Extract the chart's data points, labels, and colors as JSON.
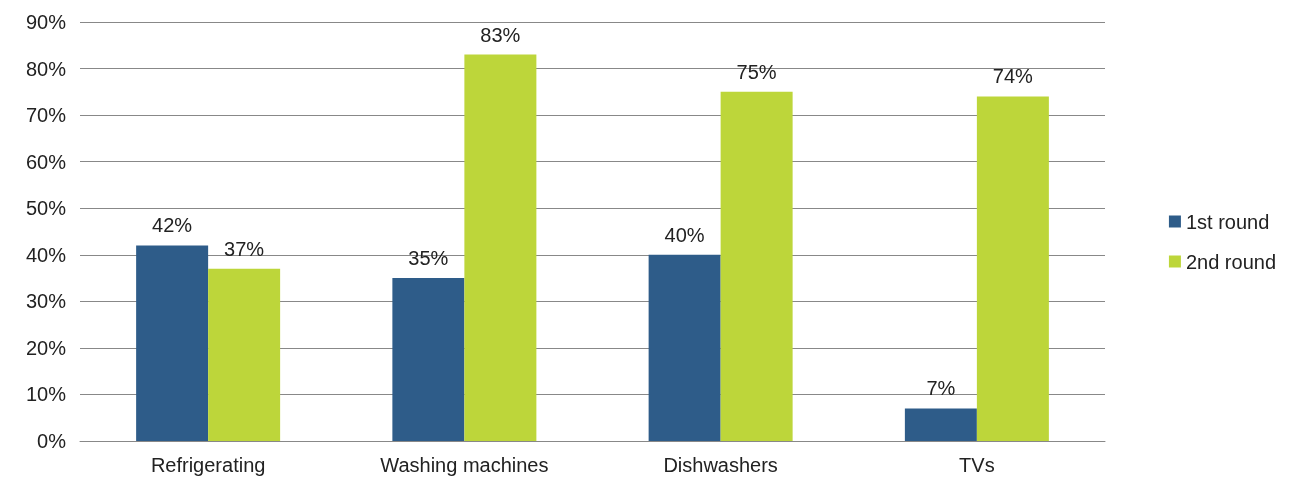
{
  "chart_data": {
    "type": "bar",
    "categories": [
      "Refrigerating",
      "Washing machines",
      "Dishwashers",
      "TVs"
    ],
    "series": [
      {
        "name": "1st round",
        "color": "#2e5c89",
        "values": [
          42,
          35,
          40,
          7
        ],
        "value_labels": [
          "42%",
          "35%",
          "40%",
          "7%"
        ]
      },
      {
        "name": "2nd round",
        "color": "#bdd63a",
        "values": [
          37,
          83,
          75,
          74
        ],
        "value_labels": [
          "37%",
          "83%",
          "75%",
          "74%"
        ]
      }
    ],
    "ylim": [
      0,
      90
    ],
    "yticks": [
      {
        "value": 0,
        "label": "0%"
      },
      {
        "value": 10,
        "label": "10%"
      },
      {
        "value": 20,
        "label": "20%"
      },
      {
        "value": 30,
        "label": "30%"
      },
      {
        "value": 40,
        "label": "40%"
      },
      {
        "value": 50,
        "label": "50%"
      },
      {
        "value": 60,
        "label": "60%"
      },
      {
        "value": 70,
        "label": "70%"
      },
      {
        "value": 80,
        "label": "80%"
      },
      {
        "value": 90,
        "label": "90%"
      }
    ],
    "grid": "y",
    "legend": "right"
  }
}
